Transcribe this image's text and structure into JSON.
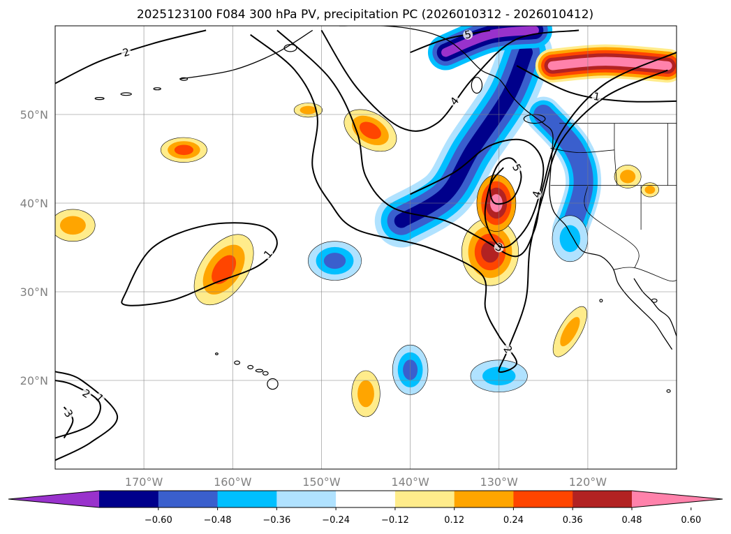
{
  "title": "2025123100 F084 300 hPa PV, precipitation PC (2026010312 - 2026010412)",
  "map": {
    "lon_range": [
      -180,
      -110
    ],
    "lat_range": [
      10,
      60
    ],
    "grid_lats": [
      20,
      30,
      40,
      50
    ],
    "grid_lons": [
      -170,
      -160,
      -150,
      -140,
      -130,
      -120
    ],
    "lat_labels": [
      "20°N",
      "30°N",
      "40°N",
      "50°N"
    ],
    "lon_labels": [
      "170°W",
      "160°W",
      "150°W",
      "140°W",
      "130°W",
      "120°W"
    ]
  },
  "colorbar": {
    "colors": [
      "#9932cc",
      "#00008b",
      "#3a5fcd",
      "#00bfff",
      "#b0e2ff",
      "#ffffff",
      "#ffec8b",
      "#ffa500",
      "#ff4500",
      "#b22222",
      "#ff82ab"
    ],
    "tick_labels": [
      "−0.60",
      "−0.48",
      "−0.36",
      "−0.24",
      "−0.12",
      "0.12",
      "0.24",
      "0.36",
      "0.48",
      "0.60"
    ]
  },
  "contour_labels": [
    "1",
    "2",
    "3",
    "4",
    "5"
  ],
  "precip_blobs": [
    {
      "lon": -165.5,
      "lat": 46.0,
      "rx": 2.6,
      "ry": 1.4,
      "levels": [
        "#ffec8b",
        "#ffa500",
        "#ff4500"
      ]
    },
    {
      "lon": -178.0,
      "lat": 37.5,
      "rx": 2.5,
      "ry": 1.8,
      "levels": [
        "#ffec8b",
        "#ffa500"
      ]
    },
    {
      "lon": -161.0,
      "lat": 32.5,
      "rx": 2.6,
      "ry": 4.5,
      "rot": 35,
      "levels": [
        "#ffec8b",
        "#ffa500",
        "#ff4500"
      ]
    },
    {
      "lon": -144.5,
      "lat": 48.2,
      "rx": 3.2,
      "ry": 2.0,
      "rot": 30,
      "levels": [
        "#ffec8b",
        "#ffa500",
        "#ff4500"
      ]
    },
    {
      "lon": -151.5,
      "lat": 50.5,
      "rx": 1.6,
      "ry": 0.8,
      "levels": [
        "#ffec8b",
        "#ffa500"
      ]
    },
    {
      "lon": -131.0,
      "lat": 34.5,
      "rx": 3.2,
      "ry": 3.8,
      "levels": [
        "#ffec8b",
        "#ffa500",
        "#ff4500",
        "#b22222"
      ]
    },
    {
      "lon": -130.3,
      "lat": 40.0,
      "rx": 2.2,
      "ry": 3.2,
      "levels": [
        "#ffa500",
        "#ff4500",
        "#b22222",
        "#ff82ab"
      ]
    },
    {
      "lon": -122.0,
      "lat": 25.5,
      "rx": 1.2,
      "ry": 3.2,
      "rot": 30,
      "levels": [
        "#ffec8b",
        "#ffa500"
      ]
    },
    {
      "lon": -145.0,
      "lat": 18.5,
      "rx": 1.6,
      "ry": 2.6,
      "levels": [
        "#ffec8b",
        "#ffa500"
      ]
    },
    {
      "lon": -115.5,
      "lat": 43.0,
      "rx": 1.5,
      "ry": 1.3,
      "levels": [
        "#ffec8b",
        "#ffa500"
      ]
    },
    {
      "lon": -113.0,
      "lat": 41.5,
      "rx": 1.0,
      "ry": 0.8,
      "levels": [
        "#ffec8b",
        "#ffa500"
      ]
    },
    {
      "lon": -148.5,
      "lat": 33.5,
      "rx": 3.0,
      "ry": 2.2,
      "levels": [
        "#b0e2ff",
        "#00bfff",
        "#3a5fcd"
      ]
    },
    {
      "lon": -140.0,
      "lat": 21.2,
      "rx": 2.0,
      "ry": 2.8,
      "levels": [
        "#b0e2ff",
        "#00bfff",
        "#3a5fcd"
      ]
    },
    {
      "lon": -130.0,
      "lat": 20.5,
      "rx": 3.2,
      "ry": 1.8,
      "levels": [
        "#b0e2ff",
        "#00bfff"
      ]
    },
    {
      "lon": -122.0,
      "lat": 36.0,
      "rx": 2.0,
      "ry": 2.6,
      "levels": [
        "#b0e2ff",
        "#00bfff"
      ]
    }
  ],
  "precip_bands": [
    {
      "points": [
        [
          -141,
          38
        ],
        [
          -136,
          41
        ],
        [
          -133,
          46
        ],
        [
          -129,
          52
        ],
        [
          -127,
          57
        ]
      ],
      "levels": [
        {
          "color": "#b0e2ff",
          "w": 6.0
        },
        {
          "color": "#00bfff",
          "w": 4.6
        },
        {
          "color": "#3a5fcd",
          "w": 3.2
        },
        {
          "color": "#00008b",
          "w": 1.6
        }
      ]
    },
    {
      "points": [
        [
          -125,
          50
        ],
        [
          -121.5,
          46
        ],
        [
          -120.5,
          42
        ],
        [
          -122,
          37
        ]
      ],
      "levels": [
        {
          "color": "#b0e2ff",
          "w": 4.0
        },
        {
          "color": "#00bfff",
          "w": 3.2
        },
        {
          "color": "#3a5fcd",
          "w": 2.2
        }
      ]
    },
    {
      "points": [
        [
          -136,
          57
        ],
        [
          -131,
          59
        ],
        [
          -126,
          59.5
        ]
      ],
      "levels": [
        {
          "color": "#00bfff",
          "w": 4.0
        },
        {
          "color": "#3a5fcd",
          "w": 3.0
        },
        {
          "color": "#00008b",
          "w": 2.0
        },
        {
          "color": "#9932cc",
          "w": 1.0
        }
      ]
    },
    {
      "points": [
        [
          -124,
          55.5
        ],
        [
          -118,
          56
        ],
        [
          -111,
          55.5
        ]
      ],
      "levels": [
        {
          "color": "#ffec8b",
          "w": 3.8
        },
        {
          "color": "#ffa500",
          "w": 3.2
        },
        {
          "color": "#ff4500",
          "w": 2.5
        },
        {
          "color": "#b22222",
          "w": 1.8
        },
        {
          "color": "#ff82ab",
          "w": 1.0
        }
      ]
    }
  ],
  "pv_contours": [
    {
      "level": 1,
      "closed": true,
      "points": [
        [
          -172,
          30
        ],
        [
          -169,
          35
        ],
        [
          -163,
          37.5
        ],
        [
          -157,
          37.5
        ],
        [
          -155,
          35.5
        ],
        [
          -157,
          33
        ],
        [
          -162,
          31
        ],
        [
          -167,
          29
        ],
        [
          -172,
          28.5
        ]
      ]
    },
    {
      "level": 1,
      "closed": false,
      "points": [
        [
          -180,
          11
        ],
        [
          -176,
          13
        ],
        [
          -173,
          16
        ],
        [
          -177,
          20
        ],
        [
          -180,
          21
        ]
      ]
    },
    {
      "level": 2,
      "closed": false,
      "points": [
        [
          -180,
          53.5
        ],
        [
          -175,
          56
        ],
        [
          -169,
          58
        ],
        [
          -163,
          59.5
        ]
      ]
    },
    {
      "level": 2,
      "closed": false,
      "points": [
        [
          -180,
          13.5
        ],
        [
          -176,
          15
        ],
        [
          -175,
          17.5
        ],
        [
          -178,
          19.5
        ],
        [
          -180,
          20
        ]
      ]
    },
    {
      "level": 3,
      "closed": false,
      "points": [
        [
          -179,
          13.5
        ],
        [
          -178,
          15.5
        ],
        [
          -179,
          17
        ]
      ]
    },
    {
      "level": 2,
      "closed": false,
      "points": [
        [
          -158,
          59
        ],
        [
          -153,
          55
        ],
        [
          -150.5,
          50
        ],
        [
          -151,
          44
        ],
        [
          -149,
          40
        ],
        [
          -146,
          37
        ],
        [
          -138,
          35
        ],
        [
          -132,
          32
        ],
        [
          -131.5,
          28
        ],
        [
          -130,
          25
        ],
        [
          -128,
          22
        ],
        [
          -130,
          21
        ],
        [
          -129,
          23.5
        ],
        [
          -127,
          29
        ],
        [
          -126.5,
          35
        ],
        [
          -125,
          41
        ],
        [
          -123,
          47
        ],
        [
          -118,
          52
        ],
        [
          -111,
          55
        ]
      ]
    },
    {
      "level": 3,
      "closed": false,
      "points": [
        [
          -155,
          59.5
        ],
        [
          -149,
          54
        ],
        [
          -146,
          48
        ],
        [
          -145,
          43
        ],
        [
          -142,
          39.5
        ],
        [
          -136,
          38
        ],
        [
          -132,
          36
        ],
        [
          -128,
          34
        ],
        [
          -126,
          37
        ],
        [
          -125,
          42
        ],
        [
          -123,
          48
        ],
        [
          -118,
          53.5
        ],
        [
          -110,
          57
        ]
      ]
    },
    {
      "level": 4,
      "closed": false,
      "points": [
        [
          -150,
          59.5
        ],
        [
          -146,
          53
        ],
        [
          -141,
          48.5
        ],
        [
          -137,
          49
        ],
        [
          -133,
          54
        ],
        [
          -128,
          58.5
        ],
        [
          -121,
          59.5
        ]
      ]
    },
    {
      "level": 4,
      "closed": false,
      "points": [
        [
          -140,
          41
        ],
        [
          -135,
          43.5
        ],
        [
          -131,
          46.5
        ],
        [
          -127,
          47
        ],
        [
          -125,
          44
        ],
        [
          -126.5,
          38
        ],
        [
          -129.5,
          35
        ],
        [
          -131.5,
          38
        ],
        [
          -131,
          42
        ],
        [
          -129.5,
          44
        ]
      ]
    },
    {
      "level": 5,
      "closed": false,
      "points": [
        [
          -140,
          57
        ],
        [
          -136,
          58.5
        ],
        [
          -131,
          59.5
        ]
      ]
    },
    {
      "level": 5,
      "closed": true,
      "points": [
        [
          -131,
          42
        ],
        [
          -130,
          44.5
        ],
        [
          -128.5,
          45
        ],
        [
          -127.5,
          43
        ],
        [
          -128.5,
          40.5
        ],
        [
          -130.5,
          40
        ]
      ]
    },
    {
      "level": 1,
      "closed": false,
      "points": [
        [
          -128,
          55.5
        ],
        [
          -122,
          52.5
        ],
        [
          -116,
          51.5
        ],
        [
          -110,
          51.5
        ]
      ]
    }
  ],
  "coast": [
    {
      "points": [
        [
          -166,
          54
        ],
        [
          -160,
          55
        ],
        [
          -155,
          57
        ],
        [
          -151,
          59.5
        ]
      ]
    },
    {
      "points": [
        [
          -148,
          60
        ],
        [
          -143,
          60
        ],
        [
          -139,
          59.5
        ],
        [
          -136,
          58.5
        ],
        [
          -134,
          57
        ],
        [
          -132,
          55
        ],
        [
          -130,
          54
        ],
        [
          -128.5,
          52
        ],
        [
          -127,
          50.5
        ],
        [
          -125,
          49
        ],
        [
          -124,
          48
        ],
        [
          -124,
          46
        ],
        [
          -124.2,
          43.5
        ],
        [
          -124.3,
          41
        ],
        [
          -123.8,
          39
        ],
        [
          -122.5,
          37.5
        ],
        [
          -121.8,
          36.3
        ],
        [
          -120.6,
          34.6
        ],
        [
          -118.5,
          34
        ],
        [
          -117.2,
          32.7
        ],
        [
          -116.6,
          31
        ],
        [
          -115.5,
          29.5
        ],
        [
          -114,
          28
        ],
        [
          -112.5,
          26.5
        ],
        [
          -111.5,
          25
        ],
        [
          -110.5,
          23.5
        ]
      ]
    },
    {
      "points": [
        [
          -114.8,
          31.5
        ],
        [
          -113.8,
          30
        ],
        [
          -112.8,
          29
        ],
        [
          -112,
          28
        ],
        [
          -110.8,
          27
        ],
        [
          -110,
          25
        ]
      ]
    }
  ],
  "border": [
    {
      "points": [
        [
          -123.2,
          49
        ],
        [
          -110,
          49
        ]
      ]
    },
    {
      "points": [
        [
          -117.1,
          32.5
        ],
        [
          -114.7,
          32.7
        ],
        [
          -111,
          31.3
        ],
        [
          -110,
          31.3
        ]
      ]
    },
    {
      "points": [
        [
          -124.2,
          42
        ],
        [
          -110,
          42
        ]
      ]
    },
    {
      "points": [
        [
          -120,
          42
        ],
        [
          -120,
          39
        ],
        [
          -114.6,
          35
        ],
        [
          -114.7,
          32.7
        ]
      ]
    },
    {
      "points": [
        [
          -117,
          49
        ],
        [
          -117,
          46
        ],
        [
          -116.9,
          44.3
        ],
        [
          -116.7,
          42
        ]
      ]
    },
    {
      "points": [
        [
          -111,
          49
        ],
        [
          -111,
          42
        ]
      ]
    },
    {
      "points": [
        [
          -114,
          42
        ],
        [
          -114,
          37
        ]
      ]
    },
    {
      "points": [
        [
          -124.2,
          46.2
        ],
        [
          -121,
          45.7
        ],
        [
          -117,
          46
        ]
      ]
    }
  ],
  "islands": [
    {
      "lon": -159.5,
      "lat": 22.0,
      "rx": 0.3,
      "ry": 0.2
    },
    {
      "lon": -158.0,
      "lat": 21.5,
      "rx": 0.3,
      "ry": 0.2
    },
    {
      "lon": -157.0,
      "lat": 21.1,
      "rx": 0.4,
      "ry": 0.15
    },
    {
      "lon": -156.3,
      "lat": 20.8,
      "rx": 0.3,
      "ry": 0.2
    },
    {
      "lon": -155.5,
      "lat": 19.6,
      "rx": 0.6,
      "ry": 0.6
    },
    {
      "lon": -161.8,
      "lat": 23.0,
      "rx": 0.15,
      "ry": 0.1
    },
    {
      "lon": -172.0,
      "lat": 52.3,
      "rx": 0.6,
      "ry": 0.15
    },
    {
      "lon": -175.0,
      "lat": 51.8,
      "rx": 0.5,
      "ry": 0.12
    },
    {
      "lon": -168.5,
      "lat": 52.9,
      "rx": 0.4,
      "ry": 0.12
    },
    {
      "lon": -165.5,
      "lat": 54.0,
      "rx": 0.4,
      "ry": 0.15
    },
    {
      "lon": -153.5,
      "lat": 57.5,
      "rx": 0.7,
      "ry": 0.4
    },
    {
      "lon": -132.5,
      "lat": 53.3,
      "rx": 0.6,
      "ry": 0.9
    },
    {
      "lon": -126.0,
      "lat": 49.5,
      "rx": 1.2,
      "ry": 0.5
    },
    {
      "lon": -118.5,
      "lat": 29.0,
      "rx": 0.15,
      "ry": 0.15
    },
    {
      "lon": -110.9,
      "lat": 18.8,
      "rx": 0.2,
      "ry": 0.15
    },
    {
      "lon": -112.5,
      "lat": 29.0,
      "rx": 0.3,
      "ry": 0.2
    }
  ]
}
